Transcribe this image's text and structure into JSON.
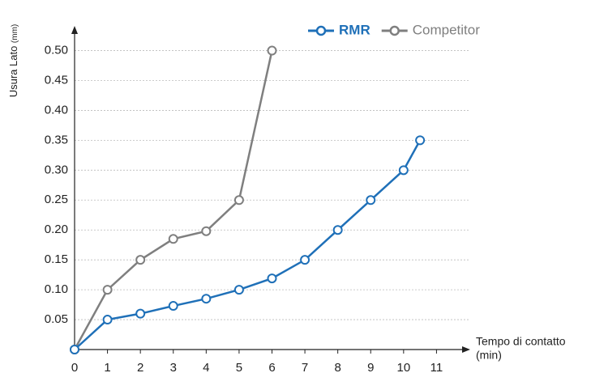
{
  "chart_data": {
    "type": "line",
    "y_label": "Usura Lato",
    "y_unit": "(mm)",
    "x_label": "Tempo di contatto",
    "x_unit": "(min)",
    "series": [
      {
        "name": "RMR",
        "color": "#1f70b8",
        "x": [
          0,
          1,
          2,
          3,
          4,
          5,
          6,
          7,
          8,
          9,
          10,
          10.5
        ],
        "values": [
          0,
          0.05,
          0.06,
          0.073,
          0.085,
          0.1,
          0.119,
          0.15,
          0.2,
          0.25,
          0.3,
          0.35
        ]
      },
      {
        "name": "Competitor",
        "color": "#7f7f7f",
        "x": [
          0,
          1,
          2,
          3,
          4,
          5,
          6
        ],
        "values": [
          0,
          0.1,
          0.15,
          0.185,
          0.198,
          0.25,
          0.5
        ]
      }
    ],
    "xlim": [
      0,
      12
    ],
    "ylim": [
      0,
      0.54
    ],
    "xticks": [
      0,
      1,
      2,
      3,
      4,
      5,
      6,
      7,
      8,
      9,
      10,
      11
    ],
    "yticks": [
      0.05,
      {
        "value": 0.1,
        "label": "0.10"
      },
      0.15,
      {
        "value": 0.2,
        "label": "0.20"
      },
      0.25,
      {
        "value": 0.3,
        "label": "0.30"
      },
      0.35,
      {
        "value": 0.4,
        "label": "0.40"
      },
      0.45,
      {
        "value": 0.5,
        "label": "0.50"
      }
    ],
    "grid": true,
    "legend": "top-right"
  }
}
